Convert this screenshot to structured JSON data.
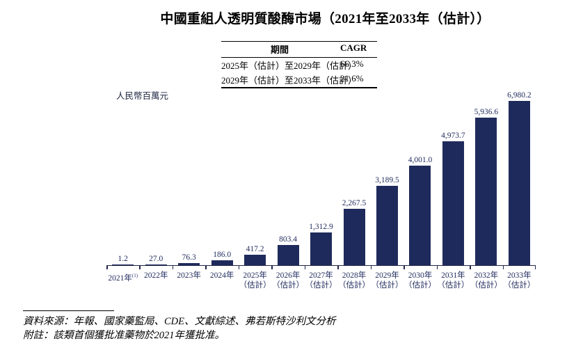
{
  "title": "中國重組人透明質酸酶市場（2021年至2033年（估計））",
  "unit_label": "人民幣百萬元",
  "cagr_table": {
    "period_header": "期間",
    "cagr_header": "CAGR",
    "rows": [
      {
        "period": "2025年（估計）至2029年（估計）",
        "cagr": "66.3%"
      },
      {
        "period": "2029年（估計）至2033年（估計）",
        "cagr": "21.6%"
      }
    ]
  },
  "chart_data": {
    "type": "bar",
    "title": "中國重組人透明質酸酶市場（2021年至2033年（估計））",
    "xlabel": "",
    "ylabel": "人民幣百萬元",
    "ylim": [
      0,
      7000
    ],
    "grid": false,
    "legend": "none",
    "bar_color": "#1f2a5c",
    "categories": [
      {
        "line1": "2021年",
        "sup": "(1)",
        "line2": ""
      },
      {
        "line1": "2022年",
        "sup": "",
        "line2": ""
      },
      {
        "line1": "2023年",
        "sup": "",
        "line2": ""
      },
      {
        "line1": "2024年",
        "sup": "",
        "line2": ""
      },
      {
        "line1": "2025年",
        "sup": "",
        "line2": "（估計）"
      },
      {
        "line1": "2026年",
        "sup": "",
        "line2": "（估計）"
      },
      {
        "line1": "2027年",
        "sup": "",
        "line2": "（估計）"
      },
      {
        "line1": "2028年",
        "sup": "",
        "line2": "（估計）"
      },
      {
        "line1": "2029年",
        "sup": "",
        "line2": "（估計）"
      },
      {
        "line1": "2030年",
        "sup": "",
        "line2": "（估計）"
      },
      {
        "line1": "2031年",
        "sup": "",
        "line2": "（估計）"
      },
      {
        "line1": "2032年",
        "sup": "",
        "line2": "（估計）"
      },
      {
        "line1": "2033年",
        "sup": "",
        "line2": "（估計）"
      }
    ],
    "values": [
      1.2,
      27.0,
      76.3,
      186.0,
      417.2,
      803.4,
      1312.9,
      2267.5,
      3189.5,
      4001.0,
      4973.7,
      5936.6,
      6980.2
    ],
    "value_labels": [
      "1.2",
      "27.0",
      "76.3",
      "186.0",
      "417.2",
      "803.4",
      "1,312.9",
      "2,267.5",
      "3,189.5",
      "4,001.0",
      "4,973.7",
      "5,936.6",
      "6,980.2"
    ]
  },
  "footer": {
    "source": "資料來源：年報、國家藥監局、CDE、文獻綜述、弗若斯特沙利文分析",
    "note": "附註：該類首個獲批准藥物於2021年獲批准。"
  }
}
